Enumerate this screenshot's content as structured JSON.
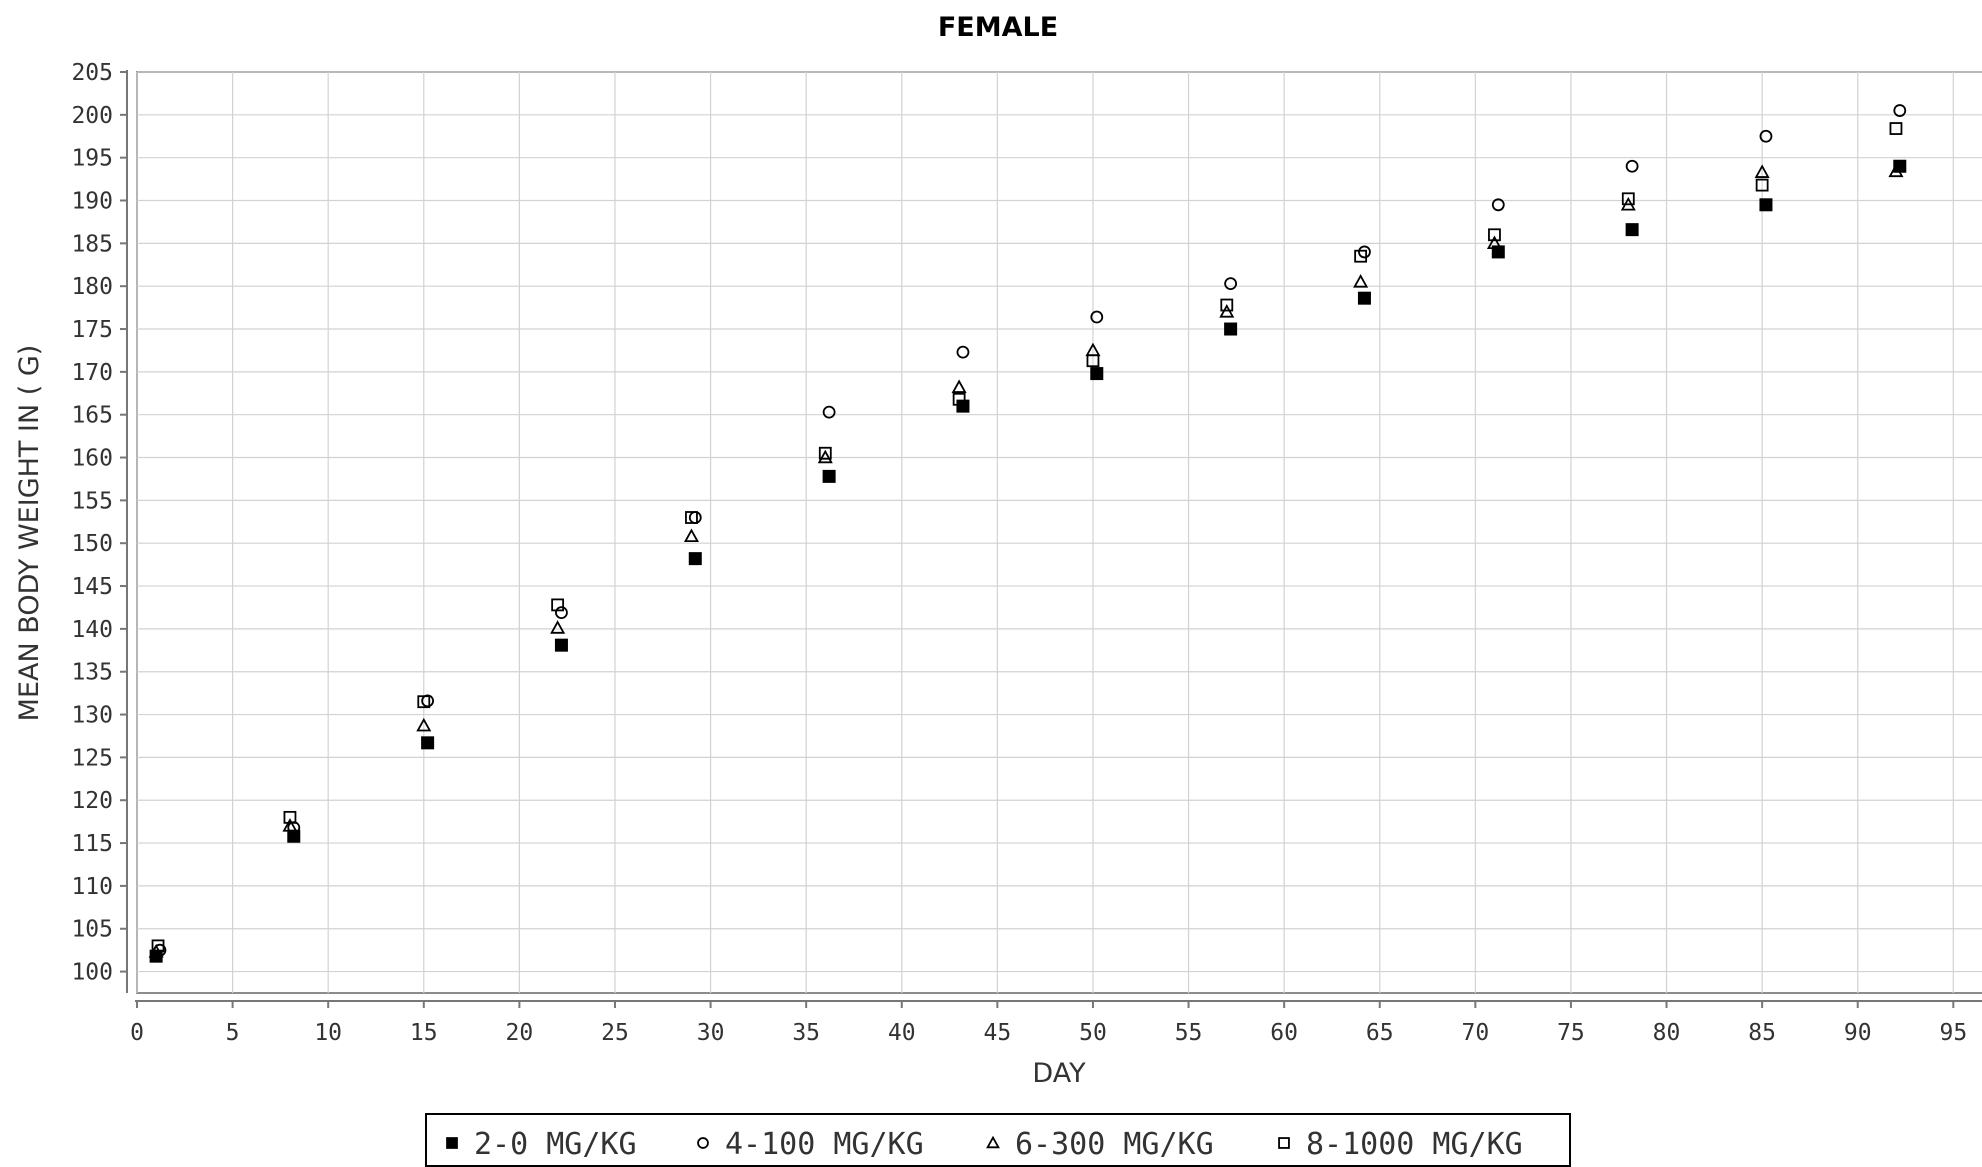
{
  "chart_data": {
    "type": "scatter",
    "title": "FEMALE",
    "xlabel": "DAY",
    "ylabel": "MEAN BODY WEIGHT IN ( G)",
    "xlim": [
      0,
      96.5
    ],
    "ylim": [
      97.5,
      205
    ],
    "xticks": [
      0,
      5,
      10,
      15,
      20,
      25,
      30,
      35,
      40,
      45,
      50,
      55,
      60,
      65,
      70,
      75,
      80,
      85,
      90,
      95
    ],
    "yticks": [
      100,
      105,
      110,
      115,
      120,
      125,
      130,
      135,
      140,
      145,
      150,
      155,
      160,
      165,
      170,
      175,
      180,
      185,
      190,
      195,
      200,
      205
    ],
    "grid": true,
    "legend_position": "bottom",
    "series": [
      {
        "name": "2-0 MG/KG",
        "marker": "filled-square",
        "color": "#000000",
        "points": [
          [
            1,
            101.8
          ],
          [
            8.2,
            115.8
          ],
          [
            15.2,
            126.7
          ],
          [
            22.2,
            138.1
          ],
          [
            29.2,
            148.2
          ],
          [
            36.2,
            157.8
          ],
          [
            43.2,
            166.0
          ],
          [
            50.2,
            169.8
          ],
          [
            57.2,
            175.0
          ],
          [
            64.2,
            178.6
          ],
          [
            71.2,
            184.0
          ],
          [
            78.2,
            186.6
          ],
          [
            85.2,
            189.5
          ],
          [
            92.2,
            194.0
          ]
        ]
      },
      {
        "name": "4-100 MG/KG",
        "marker": "open-circle",
        "color": "#000000",
        "points": [
          [
            1.2,
            102.5
          ],
          [
            8.2,
            116.8
          ],
          [
            15.2,
            131.6
          ],
          [
            22.2,
            141.9
          ],
          [
            29.2,
            153.0
          ],
          [
            36.2,
            165.3
          ],
          [
            43.2,
            172.3
          ],
          [
            50.2,
            176.4
          ],
          [
            57.2,
            180.3
          ],
          [
            64.2,
            184.0
          ],
          [
            71.2,
            189.5
          ],
          [
            78.2,
            194.0
          ],
          [
            85.2,
            197.5
          ],
          [
            92.2,
            200.5
          ]
        ]
      },
      {
        "name": "6-300 MG/KG",
        "marker": "open-triangle",
        "color": "#000000",
        "points": [
          [
            1,
            102.3
          ],
          [
            8,
            117.0
          ],
          [
            15,
            128.7
          ],
          [
            22,
            140.1
          ],
          [
            29,
            150.8
          ],
          [
            36,
            160.0
          ],
          [
            43,
            168.2
          ],
          [
            50,
            172.5
          ],
          [
            57,
            177.0
          ],
          [
            64,
            180.5
          ],
          [
            71,
            185.0
          ],
          [
            78,
            189.5
          ],
          [
            85,
            193.3
          ],
          [
            92,
            193.4
          ]
        ]
      },
      {
        "name": "8-1000 MG/KG",
        "marker": "open-square",
        "color": "#000000",
        "points": [
          [
            1.1,
            103.0
          ],
          [
            8,
            118.0
          ],
          [
            15,
            131.5
          ],
          [
            22,
            142.8
          ],
          [
            29,
            153.0
          ],
          [
            36,
            160.5
          ],
          [
            43,
            166.8
          ],
          [
            50,
            171.3
          ],
          [
            57,
            177.8
          ],
          [
            64,
            183.5
          ],
          [
            71,
            186.0
          ],
          [
            78,
            190.2
          ],
          [
            85,
            191.8
          ],
          [
            92,
            198.4
          ]
        ]
      }
    ]
  }
}
